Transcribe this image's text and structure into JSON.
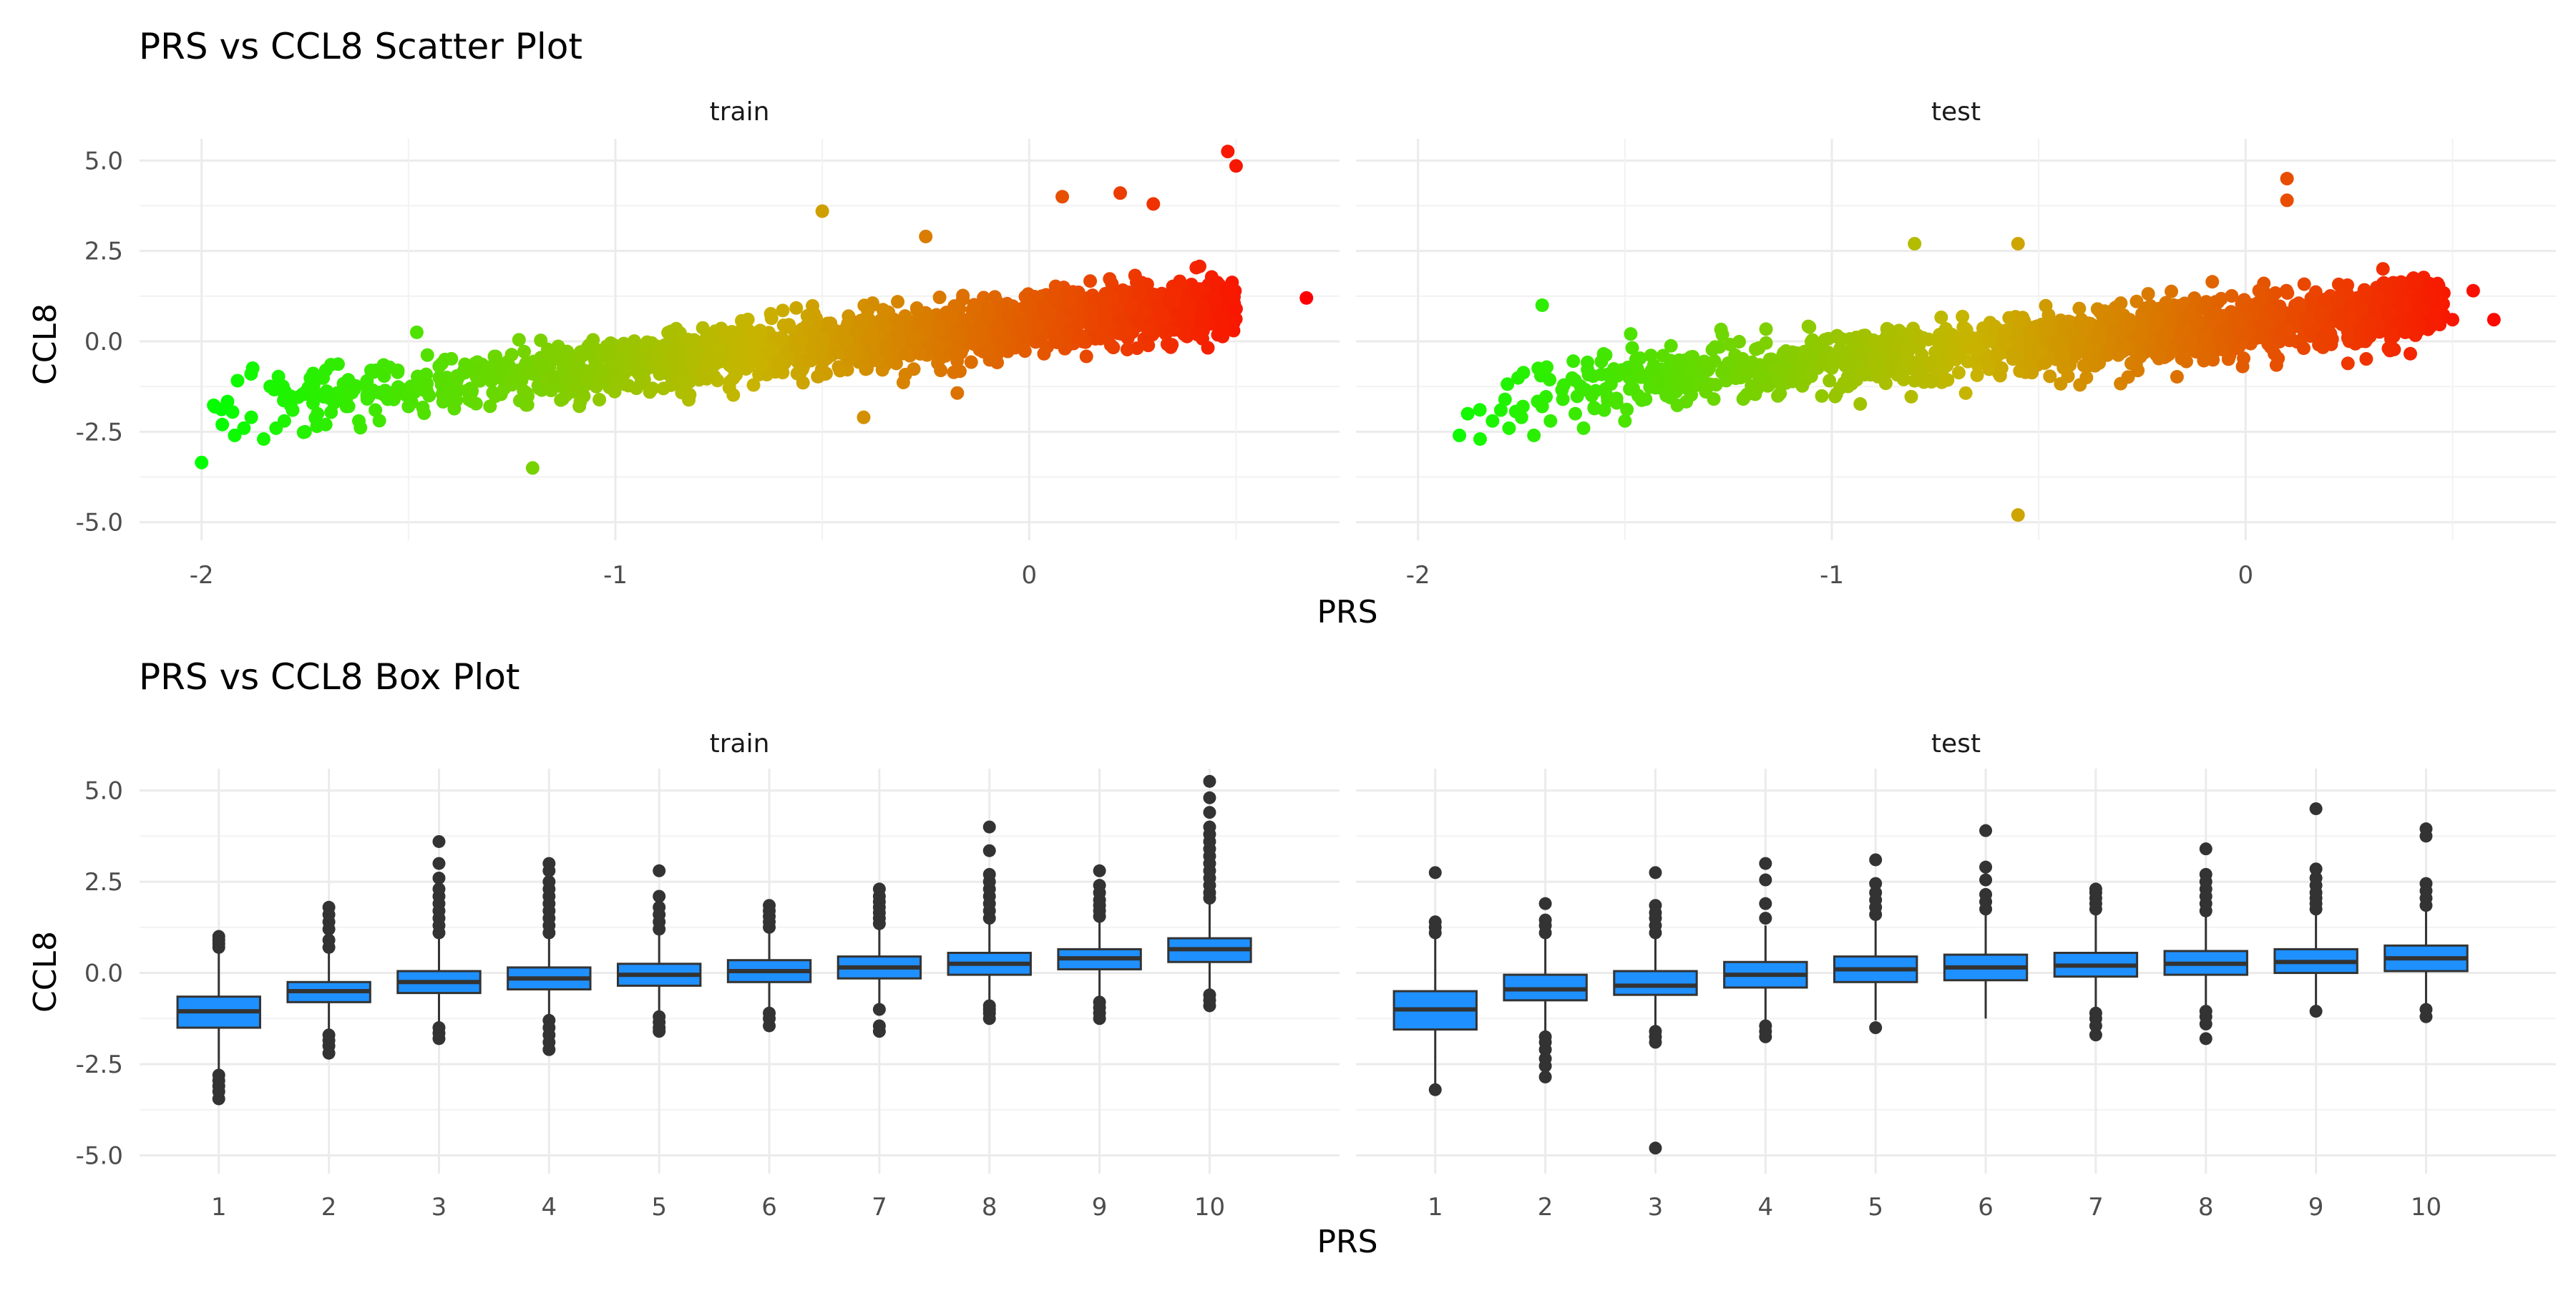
{
  "chart_data": [
    {
      "type": "scatter",
      "title": "PRS vs CCL8 Scatter Plot",
      "xlabel": "PRS",
      "ylabel": "CCL8",
      "xlim": [
        -2.15,
        0.75
      ],
      "ylim": [
        -5.5,
        5.6
      ],
      "x_ticks": [
        -2,
        -1,
        0
      ],
      "x_tick_labels": [
        "-2",
        "-1",
        "0"
      ],
      "y_ticks": [
        -5,
        -2.5,
        0,
        2.5,
        5
      ],
      "y_tick_labels": [
        "-5.0",
        "-2.5",
        "0.0",
        "2.5",
        "5.0"
      ],
      "grid": true,
      "color_scale": {
        "low": "#00ff00",
        "mid": "#c8b400",
        "high": "#ff0000"
      },
      "panels": [
        {
          "label": "train",
          "x": [
            -2.0,
            -1.95,
            -1.92,
            -1.88,
            -1.85,
            -1.82,
            -1.8,
            -1.78,
            -1.75,
            -1.72,
            -1.7,
            -1.68,
            -1.65,
            -1.62,
            -1.6,
            -1.58,
            -1.55,
            -1.52,
            -1.5,
            -1.48,
            -1.45,
            -1.42,
            -1.4,
            -1.38,
            -1.35,
            -1.32,
            -1.3,
            -1.28,
            -1.25,
            -1.22,
            -1.2,
            -1.18,
            -1.15,
            -1.12,
            -1.1,
            -1.08,
            -1.05,
            -1.02,
            -1.0,
            -0.98,
            -0.95,
            -0.92,
            -0.9,
            -0.88,
            -0.85,
            -0.82,
            -0.8,
            -0.78,
            -0.75,
            -0.72,
            -0.7,
            -0.68,
            -0.65,
            -0.62,
            -0.6,
            -0.58,
            -0.55,
            -0.52,
            -0.5,
            -0.48,
            -0.45,
            -0.42,
            -0.4,
            -0.38,
            -0.35,
            -0.32,
            -0.3,
            -0.28,
            -0.25,
            -0.22,
            -0.2,
            -0.18,
            -0.15,
            -0.12,
            -0.1,
            -0.08,
            -0.05,
            -0.02,
            0.0,
            0.02,
            0.05,
            0.08,
            0.1,
            0.12,
            0.15,
            0.18,
            0.2,
            0.22,
            0.25,
            0.28,
            0.3,
            0.32,
            0.35,
            0.38,
            0.4,
            0.42,
            0.45,
            0.48,
            0.5,
            0.08,
            0.22,
            0.48,
            0.5,
            0.67,
            -1.2,
            -0.5,
            -0.25,
            -1.48,
            -0.4,
            0.3,
            -1.7
          ],
          "y": [
            -3.35,
            -2.3,
            -2.6,
            -2.1,
            -2.7,
            -2.4,
            -2.2,
            -1.9,
            -2.5,
            -2.0,
            -2.3,
            -1.7,
            -1.8,
            -2.2,
            -1.5,
            -1.9,
            -1.6,
            -1.4,
            -1.8,
            -1.3,
            -1.5,
            -1.2,
            -1.4,
            -1.0,
            -1.3,
            -0.9,
            -1.1,
            -0.8,
            -1.2,
            -0.7,
            -0.9,
            -0.6,
            -1.0,
            -0.5,
            -0.8,
            -0.4,
            -0.7,
            -0.3,
            -0.6,
            -0.2,
            -0.5,
            -0.3,
            -0.4,
            -0.1,
            -0.5,
            0.0,
            -0.3,
            0.1,
            -0.2,
            0.2,
            -0.1,
            0.0,
            0.3,
            -0.2,
            0.1,
            0.4,
            0.0,
            0.2,
            -0.1,
            0.5,
            0.1,
            0.3,
            0.6,
            0.0,
            0.4,
            0.2,
            0.7,
            0.1,
            0.5,
            0.3,
            0.8,
            0.2,
            0.6,
            0.4,
            0.9,
            0.3,
            0.7,
            0.5,
            1.0,
            0.4,
            0.8,
            0.6,
            1.1,
            0.5,
            0.9,
            0.7,
            1.2,
            0.6,
            1.0,
            0.8,
            1.3,
            0.7,
            1.1,
            0.9,
            1.4,
            0.8,
            1.2,
            1.0,
            0.9,
            4.0,
            4.1,
            5.25,
            4.85,
            1.2,
            -3.5,
            3.6,
            2.9,
            0.25,
            -2.1,
            3.8,
            -0.8
          ],
          "note_density": "several thousand points along an upward band"
        },
        {
          "label": "test",
          "x": [
            -1.9,
            -1.88,
            -1.85,
            -1.82,
            -1.8,
            -1.78,
            -1.75,
            -1.72,
            -1.7,
            -1.68,
            -1.65,
            -1.62,
            -1.6,
            -1.58,
            -1.55,
            -1.52,
            -1.5,
            -1.48,
            -1.45,
            -1.42,
            -1.4,
            -1.38,
            -1.35,
            -1.32,
            -1.3,
            -1.28,
            -1.25,
            -1.22,
            -1.2,
            -1.18,
            -1.15,
            -1.12,
            -1.1,
            -1.08,
            -1.05,
            -1.02,
            -1.0,
            -0.98,
            -0.95,
            -0.92,
            -0.9,
            -0.88,
            -0.85,
            -0.82,
            -0.8,
            -0.78,
            -0.75,
            -0.72,
            -0.7,
            -0.68,
            -0.65,
            -0.62,
            -0.6,
            -0.58,
            -0.55,
            -0.52,
            -0.5,
            -0.48,
            -0.45,
            -0.42,
            -0.4,
            -0.38,
            -0.35,
            -0.32,
            -0.3,
            -0.28,
            -0.25,
            -0.22,
            -0.2,
            -0.18,
            -0.15,
            -0.12,
            -0.1,
            -0.08,
            -0.05,
            -0.02,
            0.0,
            0.02,
            0.05,
            0.08,
            0.1,
            0.12,
            0.15,
            0.18,
            0.2,
            0.22,
            0.25,
            0.28,
            0.3,
            0.32,
            0.35,
            0.38,
            0.4,
            0.42,
            0.45,
            0.5,
            0.55,
            0.6,
            -1.7,
            -0.55,
            0.1,
            0.1,
            -0.8,
            -0.55
          ],
          "y": [
            -2.6,
            -2.0,
            -2.7,
            -2.2,
            -1.9,
            -2.4,
            -2.1,
            -2.6,
            -1.8,
            -2.2,
            -1.6,
            -2.0,
            -2.4,
            -1.5,
            -1.9,
            -1.7,
            -2.2,
            -1.3,
            -1.6,
            -1.1,
            -1.5,
            -0.9,
            -1.3,
            -1.0,
            -0.8,
            -1.2,
            -0.6,
            -1.0,
            -0.7,
            -0.9,
            -0.5,
            -0.8,
            -0.4,
            -0.7,
            -0.3,
            -0.6,
            -0.5,
            -0.2,
            -0.6,
            -0.3,
            -0.5,
            0.0,
            -0.4,
            -0.2,
            -0.6,
            0.1,
            -0.3,
            0.0,
            -0.5,
            0.2,
            -0.2,
            0.0,
            -0.4,
            0.3,
            -0.1,
            0.1,
            -0.3,
            0.4,
            0.0,
            0.2,
            -0.2,
            0.5,
            0.1,
            0.3,
            -0.1,
            0.6,
            0.2,
            0.4,
            0.0,
            0.7,
            0.3,
            0.5,
            0.1,
            0.8,
            0.4,
            0.6,
            0.2,
            0.9,
            0.5,
            0.7,
            0.3,
            1.0,
            0.6,
            0.8,
            0.4,
            1.1,
            0.7,
            0.9,
            0.5,
            1.2,
            0.8,
            1.0,
            0.6,
            0.9,
            1.3,
            0.6,
            1.4,
            0.6,
            1.0,
            -4.8,
            4.5,
            3.9,
            2.7,
            2.7
          ]
        }
      ]
    },
    {
      "type": "box",
      "title": "PRS vs CCL8 Box Plot",
      "xlabel": "PRS",
      "ylabel": "CCL8",
      "categories": [
        "1",
        "2",
        "3",
        "4",
        "5",
        "6",
        "7",
        "8",
        "9",
        "10"
      ],
      "ylim": [
        -5.5,
        5.6
      ],
      "y_ticks": [
        -5,
        -2.5,
        0,
        2.5,
        5
      ],
      "y_tick_labels": [
        "-5.0",
        "-2.5",
        "0.0",
        "2.5",
        "5.0"
      ],
      "box_color": "#1e90ff",
      "grid": true,
      "panels": [
        {
          "label": "train",
          "boxes": [
            {
              "q1": -1.5,
              "median": -1.05,
              "q3": -0.65,
              "whisker_low": -2.75,
              "whisker_high": 0.6,
              "outliers": [
                -2.8,
                -2.95,
                -3.1,
                -3.25,
                -3.45,
                0.7,
                0.8,
                0.9,
                1.0
              ]
            },
            {
              "q1": -0.8,
              "median": -0.5,
              "q3": -0.25,
              "whisker_low": -1.6,
              "whisker_high": 0.6,
              "outliers": [
                -1.7,
                -1.85,
                -2.0,
                -2.2,
                0.7,
                0.9,
                1.2,
                1.4,
                1.6,
                1.8
              ]
            },
            {
              "q1": -0.55,
              "median": -0.25,
              "q3": 0.05,
              "whisker_low": -1.4,
              "whisker_high": 0.95,
              "outliers": [
                -1.5,
                -1.65,
                -1.8,
                1.1,
                1.3,
                1.5,
                1.7,
                1.9,
                2.1,
                2.3,
                2.6,
                3.0,
                3.6
              ]
            },
            {
              "q1": -0.45,
              "median": -0.15,
              "q3": 0.15,
              "whisker_low": -1.2,
              "whisker_high": 1.0,
              "outliers": [
                -1.3,
                -1.5,
                -1.7,
                -1.9,
                -2.1,
                1.1,
                1.3,
                1.5,
                1.7,
                1.9,
                2.1,
                2.3,
                2.5,
                2.8,
                3.0
              ]
            },
            {
              "q1": -0.35,
              "median": -0.05,
              "q3": 0.25,
              "whisker_low": -1.1,
              "whisker_high": 1.05,
              "outliers": [
                -1.2,
                -1.35,
                -1.5,
                -1.6,
                1.2,
                1.4,
                1.6,
                1.8,
                2.1,
                2.8
              ]
            },
            {
              "q1": -0.25,
              "median": 0.05,
              "q3": 0.35,
              "whisker_low": -1.05,
              "whisker_high": 1.15,
              "outliers": [
                -1.1,
                -1.25,
                -1.45,
                1.25,
                1.4,
                1.55,
                1.7,
                1.85
              ]
            },
            {
              "q1": -0.15,
              "median": 0.15,
              "q3": 0.45,
              "whisker_low": -0.95,
              "whisker_high": 1.25,
              "outliers": [
                -1.0,
                -1.45,
                -1.6,
                1.35,
                1.5,
                1.65,
                1.8,
                1.95,
                2.1,
                2.3
              ]
            },
            {
              "q1": -0.05,
              "median": 0.25,
              "q3": 0.55,
              "whisker_low": -0.85,
              "whisker_high": 1.35,
              "outliers": [
                -0.9,
                -1.0,
                -1.1,
                -1.25,
                1.5,
                1.7,
                1.9,
                2.1,
                2.3,
                2.5,
                2.7,
                3.35,
                4.0
              ]
            },
            {
              "q1": 0.1,
              "median": 0.4,
              "q3": 0.65,
              "whisker_low": -0.7,
              "whisker_high": 1.45,
              "outliers": [
                -0.8,
                -0.95,
                -1.1,
                -1.25,
                1.55,
                1.7,
                1.85,
                2.0,
                2.2,
                2.4,
                2.8
              ]
            },
            {
              "q1": 0.3,
              "median": 0.65,
              "q3": 0.95,
              "whisker_low": -0.55,
              "whisker_high": 1.95,
              "outliers": [
                -0.6,
                -0.75,
                -0.9,
                2.05,
                2.2,
                2.4,
                2.6,
                2.8,
                3.0,
                3.2,
                3.4,
                3.6,
                3.8,
                4.0,
                4.4,
                4.8,
                5.25
              ]
            }
          ]
        },
        {
          "label": "test",
          "boxes": [
            {
              "q1": -1.55,
              "median": -1.0,
              "q3": -0.5,
              "whisker_low": -3.1,
              "whisker_high": 1.0,
              "outliers": [
                -3.2,
                1.1,
                1.25,
                1.4,
                2.75
              ]
            },
            {
              "q1": -0.75,
              "median": -0.45,
              "q3": -0.05,
              "whisker_low": -1.6,
              "whisker_high": 1.0,
              "outliers": [
                -1.75,
                -1.9,
                -2.1,
                -2.35,
                -2.55,
                -2.85,
                1.1,
                1.3,
                1.45,
                1.9
              ]
            },
            {
              "q1": -0.6,
              "median": -0.35,
              "q3": 0.05,
              "whisker_low": -1.5,
              "whisker_high": 1.0,
              "outliers": [
                -1.6,
                -1.75,
                -1.9,
                1.1,
                1.3,
                1.5,
                1.65,
                1.85,
                2.75,
                -4.8
              ]
            },
            {
              "q1": -0.4,
              "median": -0.05,
              "q3": 0.3,
              "whisker_low": -1.35,
              "whisker_high": 1.3,
              "outliers": [
                -1.45,
                -1.6,
                -1.75,
                1.5,
                1.9,
                2.55,
                3.0
              ]
            },
            {
              "q1": -0.25,
              "median": 0.1,
              "q3": 0.45,
              "whisker_low": -1.3,
              "whisker_high": 1.45,
              "outliers": [
                -1.5,
                1.6,
                1.8,
                2.0,
                2.2,
                2.45,
                3.1
              ]
            },
            {
              "q1": -0.2,
              "median": 0.15,
              "q3": 0.5,
              "whisker_low": -1.25,
              "whisker_high": 1.6,
              "outliers": [
                1.75,
                1.95,
                2.15,
                2.55,
                2.9,
                3.9
              ]
            },
            {
              "q1": -0.1,
              "median": 0.2,
              "q3": 0.55,
              "whisker_low": -1.0,
              "whisker_high": 1.6,
              "outliers": [
                -1.1,
                -1.25,
                -1.45,
                -1.7,
                1.75,
                1.9,
                2.05,
                2.2,
                2.3
              ]
            },
            {
              "q1": -0.05,
              "median": 0.25,
              "q3": 0.6,
              "whisker_low": -0.95,
              "whisker_high": 1.55,
              "outliers": [
                -1.05,
                -1.2,
                -1.4,
                -1.8,
                1.7,
                1.9,
                2.1,
                2.3,
                2.5,
                2.7,
                3.4
              ]
            },
            {
              "q1": 0.0,
              "median": 0.3,
              "q3": 0.65,
              "whisker_low": -0.9,
              "whisker_high": 1.6,
              "outliers": [
                -1.05,
                1.75,
                1.9,
                2.05,
                2.2,
                2.4,
                2.6,
                2.85,
                4.5
              ]
            },
            {
              "q1": 0.05,
              "median": 0.4,
              "q3": 0.75,
              "whisker_low": -0.9,
              "whisker_high": 1.7,
              "outliers": [
                -1.0,
                -1.2,
                1.85,
                2.05,
                2.25,
                2.45,
                3.75,
                3.95
              ]
            }
          ]
        }
      ]
    }
  ]
}
